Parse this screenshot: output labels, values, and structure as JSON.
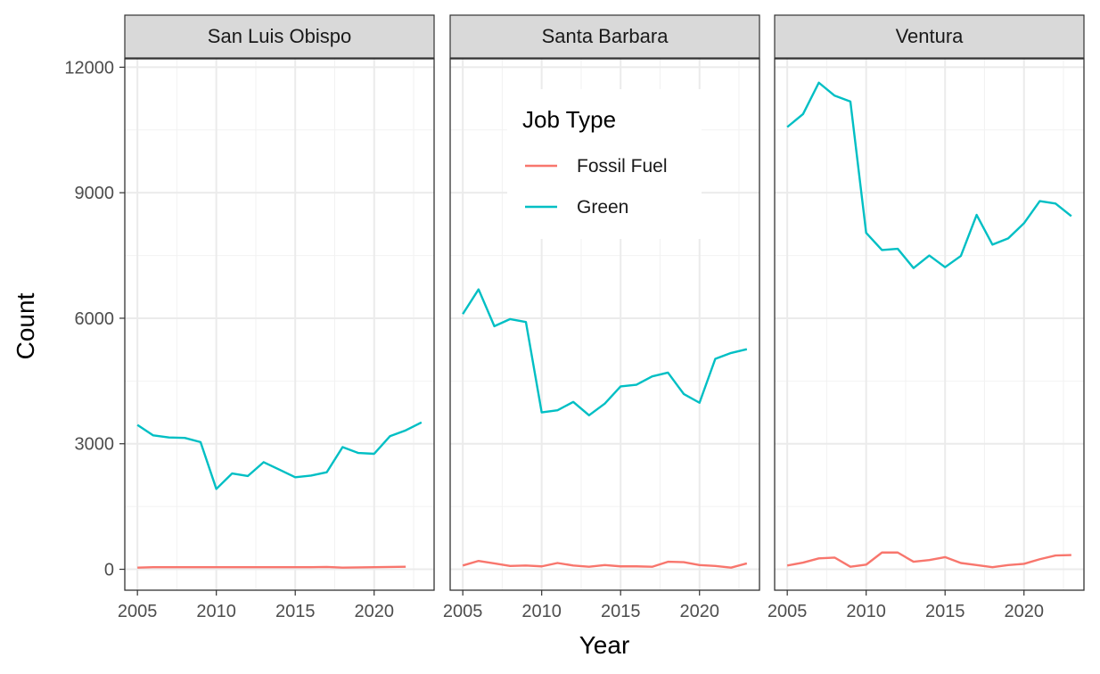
{
  "chart_data": {
    "type": "line",
    "xlabel": "Year",
    "ylabel": "Count",
    "xlim": [
      2004.2,
      2023.8
    ],
    "ylim": [
      -500,
      12200
    ],
    "x_ticks": [
      2005,
      2010,
      2015,
      2020
    ],
    "y_ticks": [
      0,
      3000,
      6000,
      9000,
      12000
    ],
    "grid": true,
    "legend": {
      "title": "Job Type",
      "placement": "inside-top (Santa Barbara panel)",
      "entries": [
        {
          "name": "Fossil Fuel",
          "color": "#F8766D"
        },
        {
          "name": "Green",
          "color": "#00BFC4"
        }
      ]
    },
    "facets": [
      {
        "name": "San Luis Obispo",
        "series": [
          {
            "name": "Fossil Fuel",
            "x": [
              2005,
              2006,
              2007,
              2008,
              2009,
              2010,
              2011,
              2012,
              2013,
              2014,
              2015,
              2016,
              2017,
              2018,
              2019,
              2020,
              2021,
              2022
            ],
            "y": [
              40,
              50,
              50,
              50,
              50,
              50,
              50,
              50,
              50,
              50,
              50,
              50,
              55,
              40,
              45,
              50,
              55,
              60
            ]
          },
          {
            "name": "Green",
            "x": [
              2005,
              2006,
              2007,
              2008,
              2009,
              2010,
              2011,
              2012,
              2013,
              2014,
              2015,
              2016,
              2017,
              2018,
              2019,
              2020,
              2021,
              2022,
              2023
            ],
            "y": [
              3450,
              3200,
              3150,
              3140,
              3040,
              1920,
              2290,
              2230,
              2560,
              2380,
              2200,
              2240,
              2320,
              2920,
              2780,
              2760,
              3180,
              3320,
              3510
            ]
          }
        ]
      },
      {
        "name": "Santa Barbara",
        "series": [
          {
            "name": "Fossil Fuel",
            "x": [
              2005,
              2006,
              2007,
              2008,
              2009,
              2010,
              2011,
              2012,
              2013,
              2014,
              2015,
              2016,
              2017,
              2018,
              2019,
              2020,
              2021,
              2022,
              2023
            ],
            "y": [
              90,
              200,
              140,
              80,
              90,
              70,
              150,
              90,
              60,
              100,
              70,
              70,
              60,
              180,
              170,
              100,
              80,
              40,
              140
            ]
          },
          {
            "name": "Green",
            "x": [
              2005,
              2006,
              2007,
              2008,
              2009,
              2010,
              2011,
              2012,
              2013,
              2014,
              2015,
              2016,
              2017,
              2018,
              2019,
              2020,
              2021,
              2022,
              2023
            ],
            "y": [
              6100,
              6690,
              5810,
              5980,
              5910,
              3750,
              3800,
              4000,
              3680,
              3960,
              4370,
              4410,
              4610,
              4700,
              4190,
              3980,
              5030,
              5170,
              5260
            ]
          }
        ]
      },
      {
        "name": "Ventura",
        "series": [
          {
            "name": "Fossil Fuel",
            "x": [
              2005,
              2006,
              2007,
              2008,
              2009,
              2010,
              2011,
              2012,
              2013,
              2014,
              2015,
              2016,
              2017,
              2018,
              2019,
              2020,
              2021,
              2022,
              2023
            ],
            "y": [
              90,
              160,
              260,
              280,
              60,
              110,
              400,
              400,
              180,
              220,
              290,
              150,
              100,
              50,
              100,
              130,
              240,
              330,
              340
            ]
          },
          {
            "name": "Green",
            "x": [
              2005,
              2006,
              2007,
              2008,
              2009,
              2010,
              2011,
              2012,
              2013,
              2014,
              2015,
              2016,
              2017,
              2018,
              2019,
              2020,
              2021,
              2022,
              2023
            ],
            "y": [
              10570,
              10880,
              11630,
              11320,
              11180,
              8040,
              7630,
              7660,
              7200,
              7500,
              7220,
              7490,
              8470,
              7760,
              7910,
              8270,
              8800,
              8740,
              8440
            ]
          }
        ]
      }
    ]
  }
}
